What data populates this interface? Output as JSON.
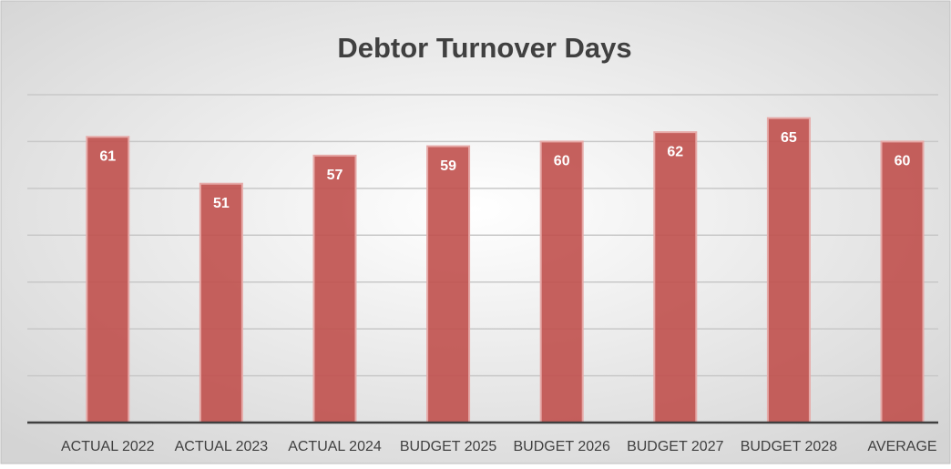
{
  "chart_data": {
    "type": "bar",
    "title": "Debtor Turnover Days",
    "categories": [
      "ACTUAL 2022",
      "ACTUAL 2023",
      "ACTUAL 2024",
      "BUDGET 2025",
      "BUDGET 2026",
      "BUDGET 2027",
      "BUDGET 2028",
      "AVERAGE"
    ],
    "values": [
      61,
      51,
      57,
      59,
      60,
      62,
      65,
      60
    ],
    "color": "#c0504d",
    "ylim": [
      0,
      70
    ],
    "yticks": [
      0,
      10,
      20,
      30,
      40,
      50,
      60,
      70
    ],
    "grid": true
  }
}
